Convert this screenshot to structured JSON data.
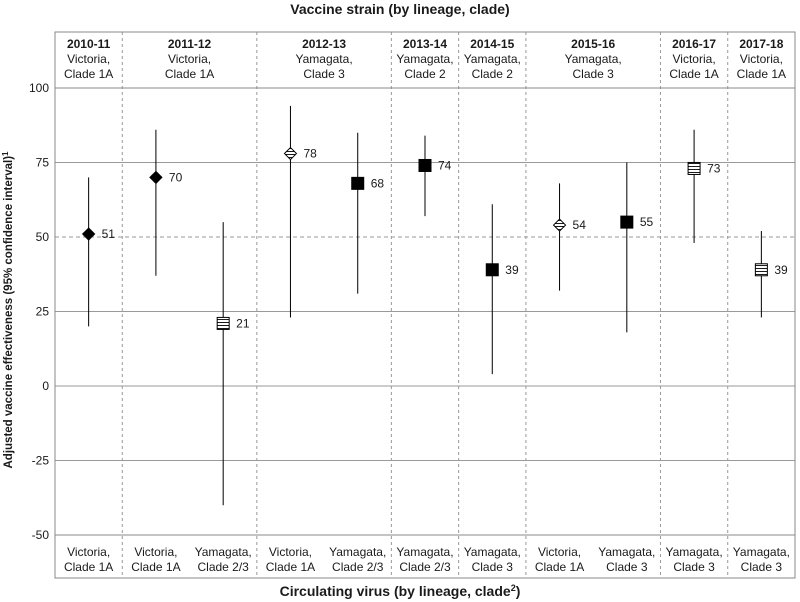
{
  "chart_data": {
    "type": "scatter",
    "title": "Vaccine strain (by lineage, clade)",
    "xlabel": "Circulating virus (by lineage, clade",
    "xlabel_sup": "2",
    "xlabel_close": ")",
    "ylabel": "Adjusted vaccine effectiveness (95% confidence interval)",
    "ylabel_sup": "1",
    "ylim": [
      -50,
      100
    ],
    "y_ticks": [
      100,
      75,
      50,
      25,
      0,
      -25,
      -50
    ],
    "reference_line": 50,
    "seasons": [
      {
        "season": "2010-11",
        "vaccine_line1": "Victoria,",
        "vaccine_line2": "Clade 1A",
        "columns": 1
      },
      {
        "season": "2011-12",
        "vaccine_line1": "Victoria,",
        "vaccine_line2": "Clade 1A",
        "columns": 2
      },
      {
        "season": "2012-13",
        "vaccine_line1": "Yamagata,",
        "vaccine_line2": "Clade 3",
        "columns": 2
      },
      {
        "season": "2013-14",
        "vaccine_line1": "Yamagata,",
        "vaccine_line2": "Clade 2",
        "columns": 1
      },
      {
        "season": "2014-15",
        "vaccine_line1": "Yamagata,",
        "vaccine_line2": "Clade 2",
        "columns": 1
      },
      {
        "season": "2015-16",
        "vaccine_line1": "Yamagata,",
        "vaccine_line2": "Clade 3",
        "columns": 2
      },
      {
        "season": "2016-17",
        "vaccine_line1": "Victoria,",
        "vaccine_line2": "Clade 1A",
        "columns": 1
      },
      {
        "season": "2017-18",
        "vaccine_line1": "Victoria,",
        "vaccine_line2": "Clade 1A",
        "columns": 1
      }
    ],
    "points": [
      {
        "virus_line1": "Victoria,",
        "virus_line2": "Clade 1A",
        "value": 51,
        "lower": 20,
        "upper": 70,
        "label": "51",
        "marker": "diamond-filled"
      },
      {
        "virus_line1": "Victoria,",
        "virus_line2": "Clade 1A",
        "value": 70,
        "lower": 37,
        "upper": 86,
        "label": "70",
        "marker": "diamond-filled"
      },
      {
        "virus_line1": "Yamagata,",
        "virus_line2": "Clade 2/3",
        "value": 21,
        "lower": -40,
        "upper": 55,
        "label": "21",
        "marker": "square-striped"
      },
      {
        "virus_line1": "Victoria,",
        "virus_line2": "Clade 1A",
        "value": 78,
        "lower": 23,
        "upper": 94,
        "label": "78",
        "marker": "diamond-striped"
      },
      {
        "virus_line1": "Yamagata,",
        "virus_line2": "Clade 2/3",
        "value": 68,
        "lower": 31,
        "upper": 85,
        "label": "68",
        "marker": "square-filled"
      },
      {
        "virus_line1": "Yamagata,",
        "virus_line2": "Clade 2/3",
        "value": 74,
        "lower": 57,
        "upper": 84,
        "label": "74",
        "marker": "square-filled"
      },
      {
        "virus_line1": "Yamagata,",
        "virus_line2": "Clade 3",
        "value": 39,
        "lower": 4,
        "upper": 61,
        "label": "39",
        "marker": "square-filled"
      },
      {
        "virus_line1": "Victoria,",
        "virus_line2": "Clade 1A",
        "value": 54,
        "lower": 32,
        "upper": 68,
        "label": "54",
        "marker": "diamond-striped"
      },
      {
        "virus_line1": "Yamagata,",
        "virus_line2": "Clade 3",
        "value": 55,
        "lower": 18,
        "upper": 75,
        "label": "55",
        "marker": "square-filled"
      },
      {
        "virus_line1": "Yamagata,",
        "virus_line2": "Clade 3",
        "value": 73,
        "lower": 48,
        "upper": 86,
        "label": "73",
        "marker": "square-striped"
      },
      {
        "virus_line1": "Yamagata,",
        "virus_line2": "Clade 3",
        "value": 39,
        "lower": 23,
        "upper": 52,
        "label": "39",
        "marker": "square-striped"
      }
    ],
    "colors": {
      "marker": "#000000",
      "gridline": "#999999",
      "frame": "#888888",
      "divider": "#999999"
    }
  }
}
